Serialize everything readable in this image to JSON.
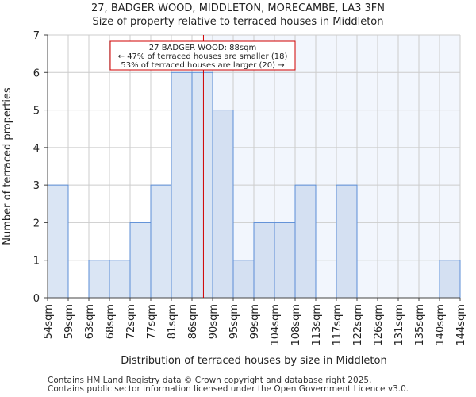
{
  "chart_data": {
    "type": "bar",
    "title": "27, BADGER WOOD, MIDDLETON, MORECAMBE, LA3 3FN",
    "subtitle": "Size of property relative to terraced houses in Middleton",
    "xlabel": "Distribution of terraced houses by size in Middleton",
    "ylabel": "Number of terraced properties",
    "x_tick_labels": [
      "54sqm",
      "59sqm",
      "63sqm",
      "68sqm",
      "72sqm",
      "77sqm",
      "81sqm",
      "86sqm",
      "90sqm",
      "95sqm",
      "99sqm",
      "104sqm",
      "108sqm",
      "113sqm",
      "117sqm",
      "122sqm",
      "126sqm",
      "131sqm",
      "135sqm",
      "140sqm",
      "144sqm"
    ],
    "bin_edges": [
      54,
      58.5,
      63,
      67.5,
      72,
      76.5,
      81,
      85.5,
      90,
      94.5,
      99,
      103.5,
      108,
      112.5,
      117,
      121.5,
      126,
      130.5,
      135,
      139.5,
      144
    ],
    "values": [
      3,
      0,
      1,
      1,
      2,
      3,
      6,
      6,
      5,
      1,
      2,
      2,
      3,
      0,
      3,
      0,
      0,
      0,
      0,
      1
    ],
    "ylim": [
      0,
      7
    ],
    "y_ticks": [
      0,
      1,
      2,
      3,
      4,
      5,
      6,
      7
    ],
    "grid": true,
    "property_size": 88,
    "annotation": {
      "line1": "27 BADGER WOOD: 88sqm",
      "line2": "← 47% of terraced houses are smaller (18)",
      "line3": "53% of terraced houses are larger (20) →"
    },
    "colors": {
      "bar_fill": "#dae5f4",
      "bar_fill_right": "#d4e0f2",
      "bar_edge": "#5b8dd6",
      "marker": "#d00000",
      "right_bg": "#f2f6fd",
      "grid": "#cccccc"
    }
  },
  "footer": {
    "line1": "Contains HM Land Registry data © Crown copyright and database right 2025.",
    "line2": "Contains public sector information licensed under the Open Government Licence v3.0."
  }
}
